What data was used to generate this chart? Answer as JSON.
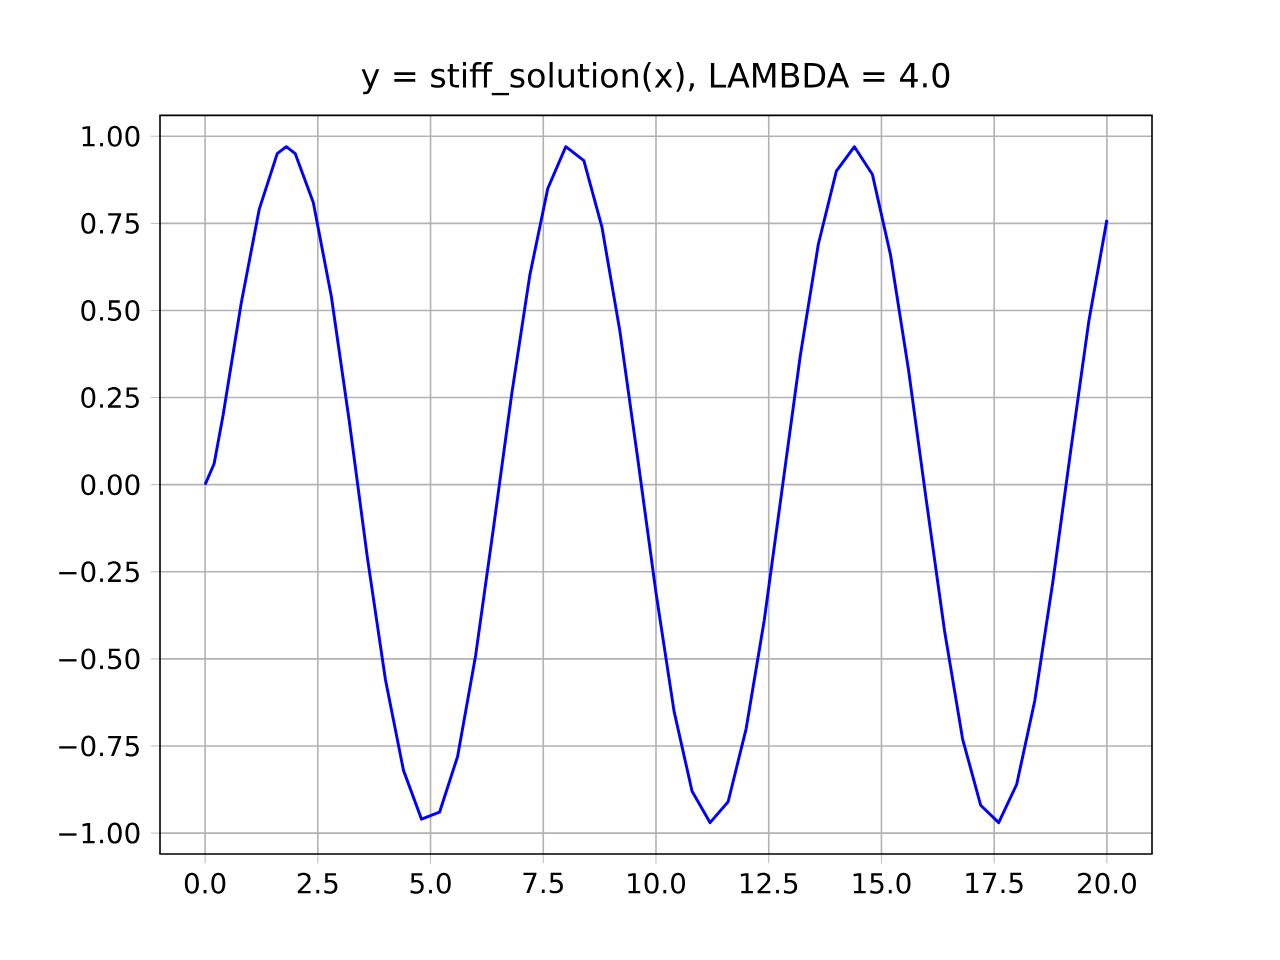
{
  "chart_data": {
    "type": "line",
    "title": "y = stiff_solution(x), LAMBDA = 4.0",
    "x": [
      0,
      0.2,
      0.4,
      0.8,
      1.2,
      1.6,
      1.8,
      2.0,
      2.4,
      2.8,
      3.2,
      3.6,
      4.0,
      4.4,
      4.8,
      5.2,
      5.6,
      6.0,
      6.4,
      6.8,
      7.2,
      7.6,
      8.0,
      8.4,
      8.8,
      9.2,
      9.6,
      10.0,
      10.4,
      10.8,
      11.2,
      11.6,
      12.0,
      12.4,
      12.8,
      13.2,
      13.6,
      14.0,
      14.4,
      14.8,
      15.2,
      15.6,
      16.0,
      16.4,
      16.8,
      17.2,
      17.6,
      18.0,
      18.4,
      18.8,
      19.2,
      19.6,
      20.0
    ],
    "series": [
      {
        "color": "#0000ff",
        "values": [
          0,
          0.06,
          0.2,
          0.52,
          0.79,
          0.95,
          0.97,
          0.95,
          0.81,
          0.54,
          0.18,
          -0.21,
          -0.56,
          -0.82,
          -0.96,
          -0.94,
          -0.78,
          -0.49,
          -0.12,
          0.26,
          0.6,
          0.85,
          0.97,
          0.93,
          0.74,
          0.44,
          0.07,
          -0.31,
          -0.65,
          -0.88,
          -0.97,
          -0.91,
          -0.7,
          -0.39,
          -0.01,
          0.37,
          0.69,
          0.9,
          0.97,
          0.89,
          0.66,
          0.33,
          -0.05,
          -0.42,
          -0.73,
          -0.92,
          -0.97,
          -0.86,
          -0.62,
          -0.28,
          0.1,
          0.47,
          0.76
        ]
      }
    ],
    "xlim": [
      -1,
      21
    ],
    "ylim": [
      -1.06,
      1.06
    ],
    "xticks": [
      {
        "value": 0,
        "label": "0.0"
      },
      {
        "value": 2.5,
        "label": "2.5"
      },
      {
        "value": 5,
        "label": "5.0"
      },
      {
        "value": 7.5,
        "label": "7.5"
      },
      {
        "value": 10,
        "label": "10.0"
      },
      {
        "value": 12.5,
        "label": "12.5"
      },
      {
        "value": 15,
        "label": "15.0"
      },
      {
        "value": 17.5,
        "label": "17.5"
      },
      {
        "value": 20,
        "label": "20.0"
      }
    ],
    "yticks": [
      {
        "value": -1,
        "label": "−1.00"
      },
      {
        "value": -0.75,
        "label": "−0.75"
      },
      {
        "value": -0.5,
        "label": "−0.50"
      },
      {
        "value": -0.25,
        "label": "−0.25"
      },
      {
        "value": 0,
        "label": "0.00"
      },
      {
        "value": 0.25,
        "label": "0.25"
      },
      {
        "value": 0.5,
        "label": "0.50"
      },
      {
        "value": 0.75,
        "label": "0.75"
      },
      {
        "value": 1,
        "label": "1.00"
      }
    ],
    "grid": true,
    "marker": "none",
    "line_style": "solid"
  }
}
